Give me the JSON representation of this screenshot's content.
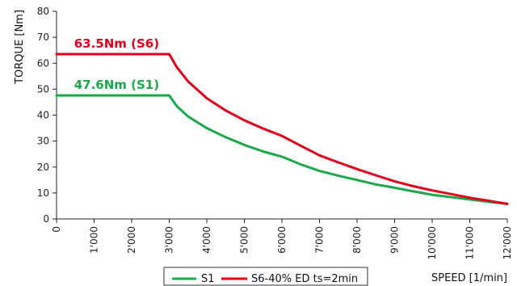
{
  "chart_data": {
    "type": "line",
    "xlabel": "SPEED [1/min]",
    "ylabel": "TORQUE [Nm]",
    "xlim": [
      0,
      12000
    ],
    "ylim": [
      0,
      80
    ],
    "x_ticks": [
      0,
      1000,
      2000,
      3000,
      4000,
      5000,
      6000,
      7000,
      8000,
      9000,
      10000,
      11000,
      12000
    ],
    "x_tick_labels": [
      "0",
      "1'000",
      "2'000",
      "3'000",
      "4'000",
      "5'000",
      "6'000",
      "7'000",
      "8'000",
      "9'000",
      "10'000",
      "11'000",
      "12'000"
    ],
    "y_ticks": [
      0,
      10,
      20,
      30,
      40,
      50,
      60,
      70,
      80
    ],
    "y_tick_labels": [
      "0",
      "10",
      "20",
      "30",
      "40",
      "50",
      "60",
      "70",
      "80"
    ],
    "grid": false,
    "legend_position": "bottom-center",
    "series": [
      {
        "name": "S1",
        "color": "#1aa84a",
        "x": [
          0,
          3000,
          3200,
          3500,
          4000,
          4500,
          5000,
          5500,
          6000,
          6500,
          7000,
          7500,
          8000,
          8500,
          9000,
          9500,
          10000,
          10500,
          11000,
          11500,
          12000
        ],
        "y": [
          47.6,
          47.6,
          43.5,
          39.5,
          35.0,
          31.5,
          28.5,
          26.0,
          24.0,
          21.0,
          18.5,
          16.7,
          15.0,
          13.3,
          12.0,
          10.6,
          9.3,
          8.4,
          7.5,
          6.6,
          5.8
        ]
      },
      {
        "name": "S6-40% ED ts=2min",
        "color": "#e3001b",
        "x": [
          0,
          3000,
          3200,
          3500,
          4000,
          4500,
          5000,
          5500,
          6000,
          6500,
          7000,
          7500,
          8000,
          8500,
          9000,
          9500,
          10000,
          10500,
          11000,
          11500,
          12000
        ],
        "y": [
          63.5,
          63.5,
          58.5,
          53.0,
          46.5,
          41.8,
          38.0,
          34.8,
          32.0,
          28.2,
          24.5,
          21.8,
          19.2,
          16.8,
          14.5,
          12.6,
          11.0,
          9.6,
          8.2,
          7.0,
          5.8
        ]
      }
    ],
    "annotations": [
      {
        "text": "63.5Nm (S6)",
        "series": "S6-40% ED ts=2min",
        "x": 1600,
        "y": 63.5,
        "color": "#e3001b"
      },
      {
        "text": "47.6Nm (S1)",
        "series": "S1",
        "x": 1600,
        "y": 47.6,
        "color": "#1aa84a"
      }
    ]
  }
}
